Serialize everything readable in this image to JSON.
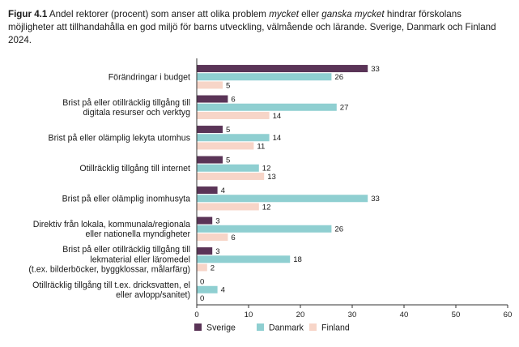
{
  "caption": {
    "label": "Figur 4.1",
    "text_1": " Andel rektorer (procent) som anser att olika problem ",
    "em_1": "mycket",
    "text_2": " eller ",
    "em_2": "ganska mycket",
    "text_3": " hindrar förskolans möjligheter att tillhandahålla en god miljö för barns utveckling, välmående och lärande. Sverige, Danmark och Finland 2024."
  },
  "colors": {
    "sverige": "#5a3457",
    "danmark": "#8fcfd1",
    "finland": "#f7d5c8",
    "axis": "#333333"
  },
  "chart_data": {
    "type": "bar",
    "orientation": "horizontal",
    "title": "Andel rektorer (procent) som anser att olika problem mycket eller ganska mycket hindrar förskolans möjligheter att tillhandahålla en god miljö för barns utveckling, välmående och lärande. Sverige, Danmark och Finland 2024.",
    "categories": [
      [
        "Förändringar i budget"
      ],
      [
        "Brist på eller otillräcklig tillgång till",
        "digitala resurser och verktyg"
      ],
      [
        "Brist på eller olämplig lekyta utomhus"
      ],
      [
        "Otillräcklig tillgång till internet"
      ],
      [
        "Brist på eller olämplig inomhusyta"
      ],
      [
        "Direktiv från lokala, kommunala/regionala",
        "eller nationella myndigheter"
      ],
      [
        "Brist på eller otillräcklig tillgång till",
        "lekmaterial eller läromedel",
        "(t.ex. bilderböcker, byggklossar, målarfärg)"
      ],
      [
        "Otillräcklig tillgång till t.ex. dricksvatten, el",
        "eller avlopp/sanitet)"
      ]
    ],
    "series": [
      {
        "name": "Sverige",
        "key": "sverige",
        "values": [
          33,
          6,
          5,
          5,
          4,
          3,
          3,
          0
        ]
      },
      {
        "name": "Danmark",
        "key": "danmark",
        "values": [
          26,
          27,
          14,
          12,
          33,
          26,
          18,
          4
        ]
      },
      {
        "name": "Finland",
        "key": "finland",
        "values": [
          5,
          14,
          11,
          13,
          12,
          6,
          2,
          0
        ]
      }
    ],
    "xlim": [
      0,
      60
    ],
    "xticks": [
      "0",
      "10",
      "20",
      "30",
      "40",
      "50",
      "60"
    ],
    "legend_position": "bottom-center",
    "xlabel": "",
    "ylabel": ""
  }
}
